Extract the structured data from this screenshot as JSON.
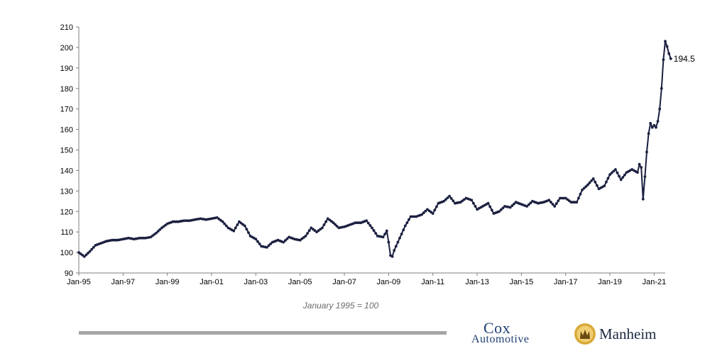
{
  "chart_data": {
    "type": "line",
    "title": "",
    "xlabel": "",
    "ylabel": "",
    "note": "January 1995 = 100",
    "ylim": [
      90,
      210
    ],
    "yticks": [
      90,
      100,
      110,
      120,
      130,
      140,
      150,
      160,
      170,
      180,
      190,
      200,
      210
    ],
    "xlim": [
      "1995-01",
      "2021-07"
    ],
    "xticks": [
      "Jan-95",
      "Jan-97",
      "Jan-99",
      "Jan-01",
      "Jan-03",
      "Jan-05",
      "Jan-07",
      "Jan-09",
      "Jan-11",
      "Jan-13",
      "Jan-15",
      "Jan-17",
      "Jan-19",
      "Jan-21"
    ],
    "grid": false,
    "legend": "none",
    "end_label": "194.5",
    "line_color": "#1b2040",
    "series": [
      {
        "points": [
          [
            "1995-01",
            100.0
          ],
          [
            "1995-04",
            98.0
          ],
          [
            "1995-07",
            100.5
          ],
          [
            "1995-10",
            103.5
          ],
          [
            "1996-01",
            104.5
          ],
          [
            "1996-04",
            105.5
          ],
          [
            "1996-07",
            106.0
          ],
          [
            "1996-10",
            106.0
          ],
          [
            "1997-01",
            106.5
          ],
          [
            "1997-04",
            107.0
          ],
          [
            "1997-07",
            106.5
          ],
          [
            "1997-10",
            107.0
          ],
          [
            "1998-01",
            107.0
          ],
          [
            "1998-04",
            107.5
          ],
          [
            "1998-07",
            109.5
          ],
          [
            "1998-10",
            112.0
          ],
          [
            "1999-01",
            114.0
          ],
          [
            "1999-04",
            115.0
          ],
          [
            "1999-07",
            115.0
          ],
          [
            "1999-10",
            115.5
          ],
          [
            "2000-01",
            115.5
          ],
          [
            "2000-04",
            116.0
          ],
          [
            "2000-07",
            116.5
          ],
          [
            "2000-10",
            116.0
          ],
          [
            "2001-01",
            116.5
          ],
          [
            "2001-04",
            117.0
          ],
          [
            "2001-07",
            115.0
          ],
          [
            "2001-10",
            112.0
          ],
          [
            "2002-01",
            110.5
          ],
          [
            "2002-04",
            115.0
          ],
          [
            "2002-07",
            113.0
          ],
          [
            "2002-10",
            108.0
          ],
          [
            "2003-01",
            106.5
          ],
          [
            "2003-04",
            103.0
          ],
          [
            "2003-07",
            102.5
          ],
          [
            "2003-10",
            105.0
          ],
          [
            "2004-01",
            106.0
          ],
          [
            "2004-04",
            105.0
          ],
          [
            "2004-07",
            107.5
          ],
          [
            "2004-10",
            106.5
          ],
          [
            "2005-01",
            106.0
          ],
          [
            "2005-04",
            108.0
          ],
          [
            "2005-07",
            112.0
          ],
          [
            "2005-10",
            110.0
          ],
          [
            "2006-01",
            112.0
          ],
          [
            "2006-04",
            116.5
          ],
          [
            "2006-07",
            114.5
          ],
          [
            "2006-10",
            112.0
          ],
          [
            "2007-01",
            112.5
          ],
          [
            "2007-04",
            113.5
          ],
          [
            "2007-07",
            114.5
          ],
          [
            "2007-10",
            114.5
          ],
          [
            "2008-01",
            115.5
          ],
          [
            "2008-04",
            112.0
          ],
          [
            "2008-07",
            108.0
          ],
          [
            "2008-10",
            107.5
          ],
          [
            "2008-12",
            110.5
          ],
          [
            "2009-01",
            105.0
          ],
          [
            "2009-02",
            98.5
          ],
          [
            "2009-03",
            98.0
          ],
          [
            "2009-04",
            101.0
          ],
          [
            "2009-07",
            107.0
          ],
          [
            "2009-10",
            113.0
          ],
          [
            "2010-01",
            117.5
          ],
          [
            "2010-04",
            117.5
          ],
          [
            "2010-07",
            118.5
          ],
          [
            "2010-10",
            121.0
          ],
          [
            "2011-01",
            119.0
          ],
          [
            "2011-04",
            124.0
          ],
          [
            "2011-07",
            125.0
          ],
          [
            "2011-10",
            127.5
          ],
          [
            "2012-01",
            124.0
          ],
          [
            "2012-04",
            124.5
          ],
          [
            "2012-07",
            126.5
          ],
          [
            "2012-10",
            125.5
          ],
          [
            "2013-01",
            121.0
          ],
          [
            "2013-04",
            122.5
          ],
          [
            "2013-07",
            124.0
          ],
          [
            "2013-10",
            119.0
          ],
          [
            "2014-01",
            120.0
          ],
          [
            "2014-04",
            122.5
          ],
          [
            "2014-07",
            122.0
          ],
          [
            "2014-10",
            124.5
          ],
          [
            "2015-01",
            123.5
          ],
          [
            "2015-04",
            122.5
          ],
          [
            "2015-07",
            125.0
          ],
          [
            "2015-10",
            124.0
          ],
          [
            "2016-01",
            124.5
          ],
          [
            "2016-04",
            125.5
          ],
          [
            "2016-07",
            122.5
          ],
          [
            "2016-10",
            126.5
          ],
          [
            "2017-01",
            126.5
          ],
          [
            "2017-04",
            124.5
          ],
          [
            "2017-07",
            124.5
          ],
          [
            "2017-10",
            130.5
          ],
          [
            "2018-01",
            133.0
          ],
          [
            "2018-04",
            136.0
          ],
          [
            "2018-07",
            131.0
          ],
          [
            "2018-10",
            132.5
          ],
          [
            "2019-01",
            138.0
          ],
          [
            "2019-04",
            140.5
          ],
          [
            "2019-07",
            135.5
          ],
          [
            "2019-10",
            139.0
          ],
          [
            "2020-01",
            140.5
          ],
          [
            "2020-04",
            139.0
          ],
          [
            "2020-05",
            143.0
          ],
          [
            "2020-06",
            141.5
          ],
          [
            "2020-07",
            126.0
          ],
          [
            "2020-08",
            137.0
          ],
          [
            "2020-09",
            149.0
          ],
          [
            "2020-10",
            158.0
          ],
          [
            "2020-11",
            163.0
          ],
          [
            "2020-12",
            161.0
          ],
          [
            "2021-01",
            162.0
          ],
          [
            "2021-02",
            161.0
          ],
          [
            "2021-03",
            164.0
          ],
          [
            "2021-04",
            170.0
          ],
          [
            "2021-05",
            180.0
          ],
          [
            "2021-06",
            194.0
          ],
          [
            "2021-07",
            203.0
          ],
          [
            "2021-08",
            200.5
          ],
          [
            "2021-09",
            197.0
          ],
          [
            "2021-10",
            194.5
          ]
        ]
      }
    ]
  },
  "logos": {
    "cox_line1": "Cox",
    "cox_line2": "Automotive",
    "manheim": "Manheim"
  }
}
